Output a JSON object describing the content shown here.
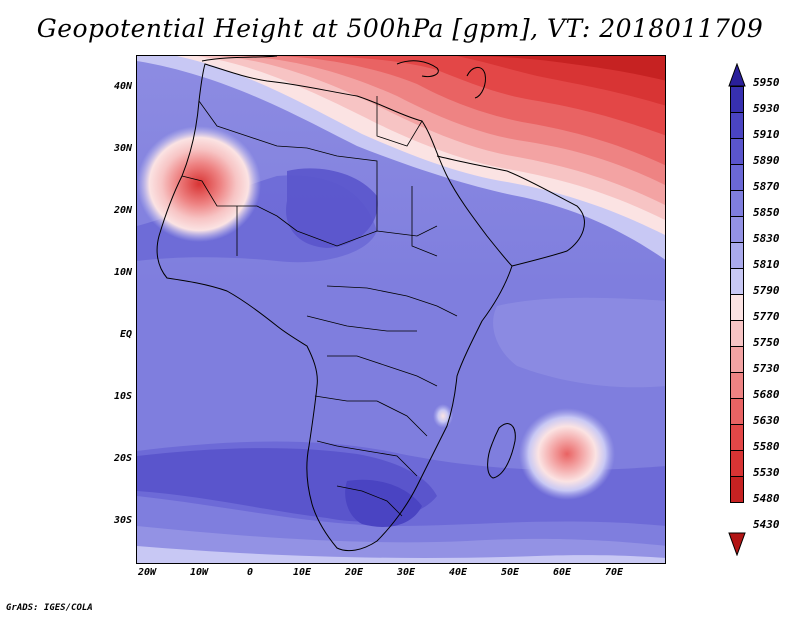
{
  "title": "Geopotential Height at 500hPa [gpm], VT: 2018011709",
  "credit": "GrADS: IGES/COLA",
  "lat_labels": [
    "40N",
    "30N",
    "20N",
    "10N",
    "EQ",
    "10S",
    "20S",
    "30S"
  ],
  "lon_labels": [
    "20W",
    "10W",
    "0",
    "10E",
    "20E",
    "30E",
    "40E",
    "50E",
    "60E",
    "70E"
  ],
  "colorbar": {
    "levels": [
      "5950",
      "5930",
      "5910",
      "5890",
      "5870",
      "5850",
      "5830",
      "5810",
      "5790",
      "5770",
      "5750",
      "5730",
      "5680",
      "5630",
      "5580",
      "5530",
      "5480",
      "5430"
    ],
    "colors": [
      "#2a1f9b",
      "#3730b0",
      "#4a44c2",
      "#5a55cc",
      "#6b68d6",
      "#7f7ede",
      "#9392e4",
      "#aaaaec",
      "#c8c8f4",
      "#fbe3e3",
      "#f7c4c4",
      "#f3a3a3",
      "#ee8383",
      "#e96363",
      "#e34747",
      "#d83434",
      "#c62222",
      "#b21515"
    ]
  }
}
